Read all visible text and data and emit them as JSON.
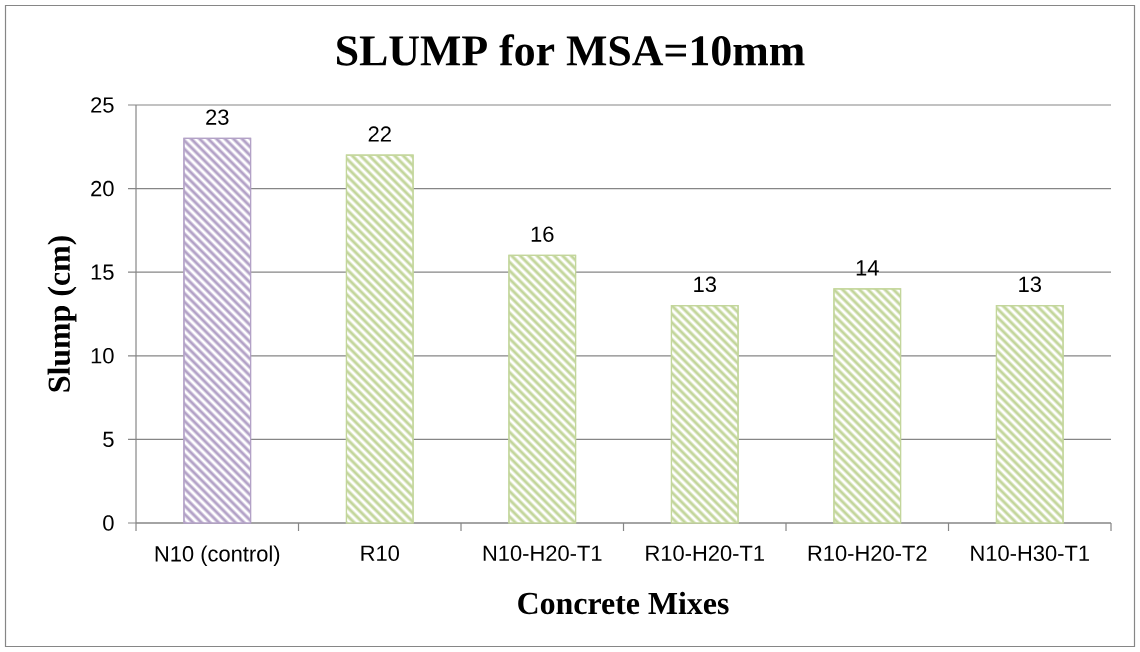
{
  "chart_data": {
    "type": "bar",
    "title": "SLUMP for MSA=10mm",
    "xlabel": "Concrete Mixes",
    "ylabel": "Slump (cm)",
    "categories": [
      "N10 (control)",
      "R10",
      "N10-H20-T1",
      "R10-H20-T1",
      "R10-H20-T2",
      "N10-H30-T1"
    ],
    "values": [
      23,
      22,
      16,
      13,
      14,
      13
    ],
    "colors": [
      "#b3a2c7",
      "#c3d69b",
      "#c3d69b",
      "#c3d69b",
      "#c3d69b",
      "#c3d69b"
    ],
    "ylim": [
      0,
      25
    ],
    "yticks": [
      0,
      5,
      10,
      15,
      20,
      25
    ],
    "grid": "y",
    "data_labels": true
  }
}
